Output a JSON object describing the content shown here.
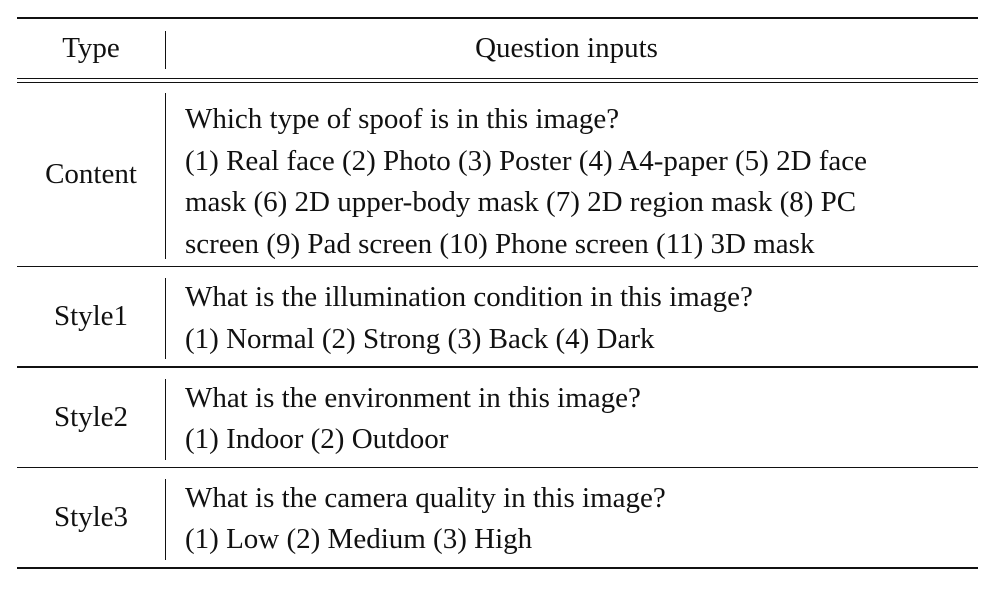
{
  "table": {
    "header": {
      "type": "Type",
      "question": "Question inputs"
    },
    "rows": [
      {
        "type": "Content",
        "question": "Which type of spoof is in this image?",
        "options_lines": [
          "(1) Real face (2) Photo (3) Poster (4) A4-paper (5) 2D face",
          "mask (6) 2D upper-body mask (7) 2D region mask (8) PC",
          "screen (9) Pad screen (10) Phone screen (11) 3D mask"
        ]
      },
      {
        "type": "Style1",
        "question": "What is the illumination condition in this image?",
        "options_lines": [
          "(1) Normal (2) Strong (3) Back (4) Dark"
        ]
      },
      {
        "type": "Style2",
        "question": "What is the environment in this image?",
        "options_lines": [
          "(1) Indoor (2) Outdoor"
        ]
      },
      {
        "type": "Style3",
        "question": "What is the camera quality in this image?",
        "options_lines": [
          "(1) Low (2) Medium (3) High"
        ]
      }
    ]
  }
}
